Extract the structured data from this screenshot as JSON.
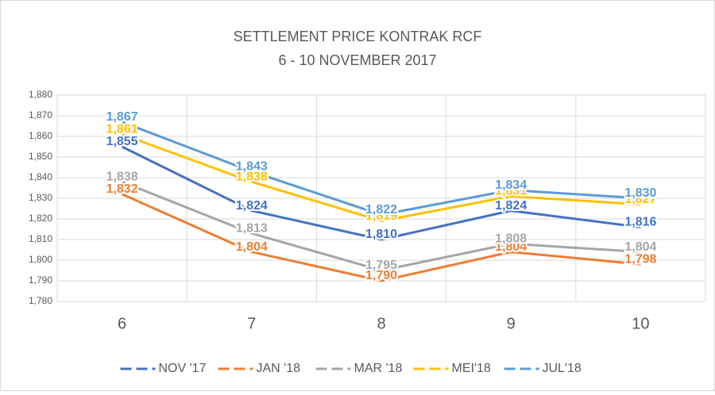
{
  "chart_data": {
    "type": "line",
    "title": "SETTLEMENT PRICE KONTRAK RCF",
    "subtitle": "6 - 10 NOVEMBER 2017",
    "categories": [
      "6",
      "7",
      "8",
      "9",
      "10"
    ],
    "series": [
      {
        "name": "NOV '17",
        "color": "#4472c4",
        "values": [
          1855,
          1824,
          1810,
          1824,
          1816
        ],
        "value_labels": [
          "1,855",
          "1,824",
          "1,810",
          "1,824",
          "1,816"
        ]
      },
      {
        "name": "JAN '18",
        "color": "#ed7d31",
        "values": [
          1832,
          1804,
          1790,
          1804,
          1798
        ],
        "value_labels": [
          "1,832",
          "1,804",
          "1,790",
          "1,804",
          "1,798"
        ]
      },
      {
        "name": "MAR '18",
        "color": "#a5a5a5",
        "values": [
          1838,
          1813,
          1795,
          1808,
          1804
        ],
        "value_labels": [
          "1,838",
          "1,813",
          "1,795",
          "1,808",
          "1,804"
        ]
      },
      {
        "name": "MEI'18",
        "color": "#ffc000",
        "values": [
          1861,
          1838,
          1819,
          1831,
          1827
        ],
        "value_labels": [
          "1,861",
          "1,838",
          "1,819",
          "1,831",
          "1,827"
        ]
      },
      {
        "name": "JUL'18",
        "color": "#5b9bd5",
        "values": [
          1867,
          1843,
          1822,
          1834,
          1830
        ],
        "value_labels": [
          "1,867",
          "1,843",
          "1,822",
          "1,834",
          "1,830"
        ]
      }
    ],
    "ylim": [
      1780,
      1880
    ],
    "yticks": [
      {
        "value": 1780,
        "label": "1,780"
      },
      {
        "value": 1790,
        "label": "1,790"
      },
      {
        "value": 1800,
        "label": "1,800"
      },
      {
        "value": 1810,
        "label": "1,810"
      },
      {
        "value": 1820,
        "label": "1,820"
      },
      {
        "value": 1830,
        "label": "1,830"
      },
      {
        "value": 1840,
        "label": "1,840"
      },
      {
        "value": 1850,
        "label": "1,850"
      },
      {
        "value": 1860,
        "label": "1,860"
      },
      {
        "value": 1870,
        "label": "1,870"
      },
      {
        "value": 1880,
        "label": "1,880"
      }
    ],
    "grid": true,
    "legend": "bottom"
  }
}
